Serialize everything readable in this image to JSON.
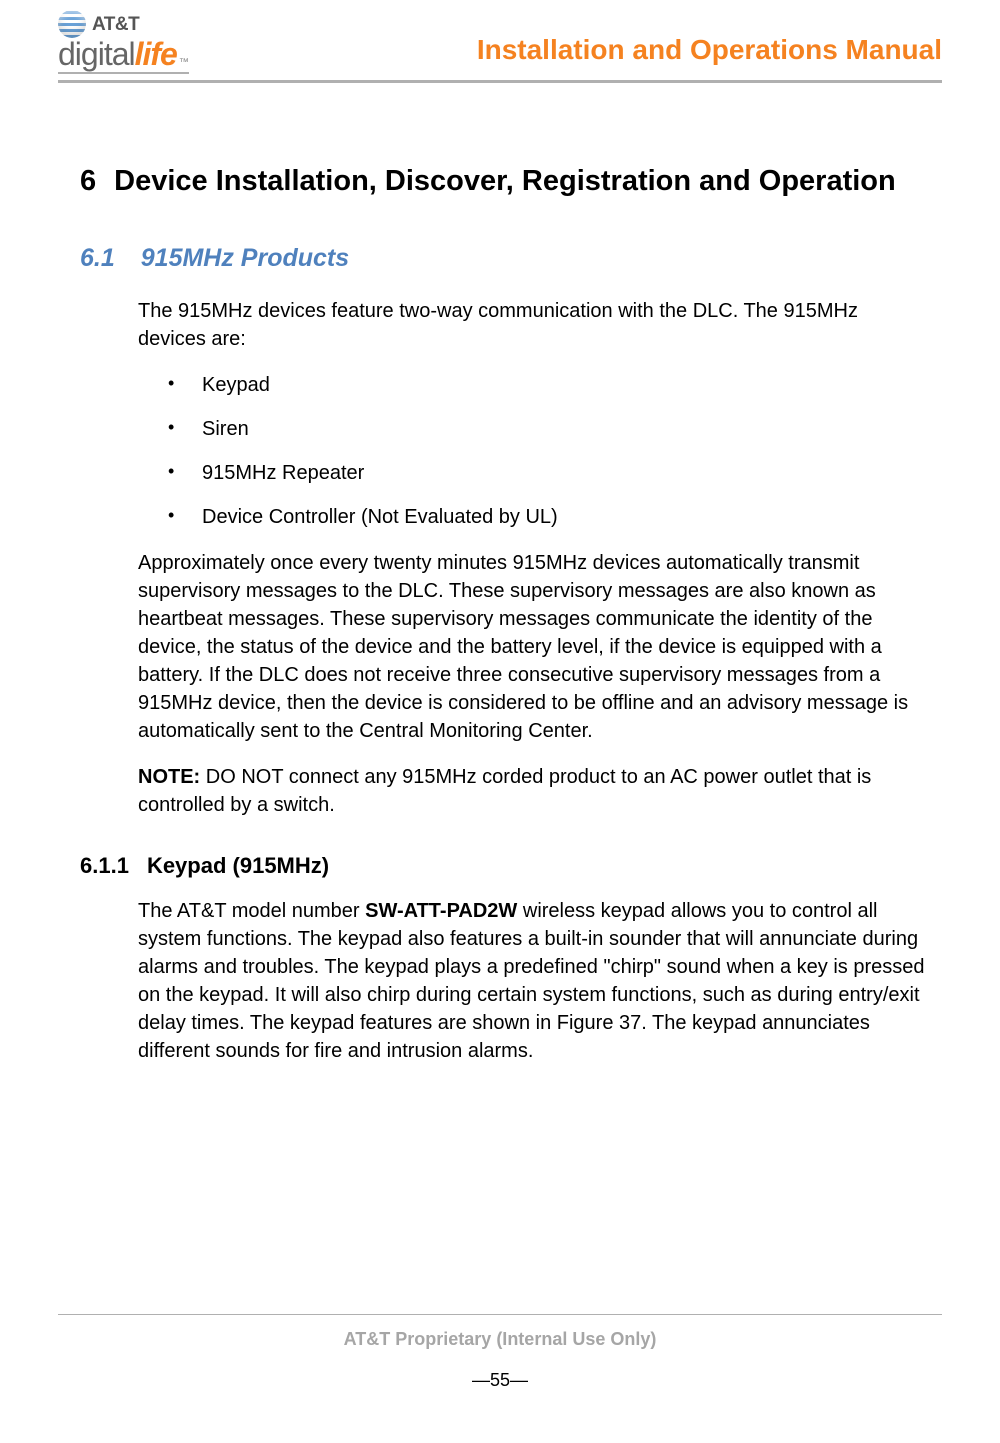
{
  "colors": {
    "accent_orange": "#f58220",
    "accent_blue": "#4f81bd",
    "text_black": "#000000",
    "text_gray": "#a6a6a6",
    "rule_gray": "#b0b0b0",
    "logo_gray": "#666666",
    "globe_blue": "#6aa2d8"
  },
  "typography": {
    "body_fontsize_pt": 15,
    "h1_fontsize_pt": 22,
    "h2_fontsize_pt": 19,
    "h3_fontsize_pt": 17,
    "header_title_fontsize_pt": 21,
    "font_family": "Arial"
  },
  "header": {
    "logo_top": "AT&T",
    "logo_digital": "digital",
    "logo_life": "life",
    "logo_tm": "™",
    "title": "Installation and Operations Manual"
  },
  "h1": {
    "number": "6",
    "text": "Device Installation, Discover, Registration and Operation"
  },
  "h2": {
    "number": "6.1",
    "text": "915MHz Products"
  },
  "intro_para": "The 915MHz devices feature two-way communication with the DLC. The 915MHz devices are:",
  "bullets": [
    "Keypad",
    "Siren",
    "915MHz Repeater",
    "Device Controller (Not Evaluated by UL)"
  ],
  "supervisory_para": "Approximately once every twenty minutes 915MHz devices automatically transmit supervisory messages to the DLC. These supervisory messages are also known as heartbeat messages. These supervisory messages communicate the identity of the device, the status of the device and the battery level, if the device is equipped with a battery.  If the DLC does not receive three consecutive supervisory messages from a 915MHz device, then the device is considered to be offline and an advisory message is automatically sent to the Central Monitoring Center.",
  "note": {
    "label": "NOTE:",
    "text": " DO NOT connect any 915MHz corded product to an AC power outlet that is controlled by a switch."
  },
  "h3": {
    "number": "6.1.1",
    "text": "Keypad (915MHz)"
  },
  "keypad_para": {
    "pre": "The AT&T model number ",
    "model": "SW-ATT-PAD2W",
    "post": " wireless keypad allows you to control all system functions. The keypad also features a built-in sounder that will annunciate during alarms and troubles. The keypad plays a predefined \"chirp\" sound when a key is pressed on the keypad. It will also chirp during certain system functions, such as during entry/exit delay times. The keypad features are shown in Figure 37. The keypad annunciates different sounds for fire and intrusion alarms."
  },
  "footer": {
    "proprietary": "AT&T Proprietary (Internal Use Only)",
    "page": "—55—"
  }
}
